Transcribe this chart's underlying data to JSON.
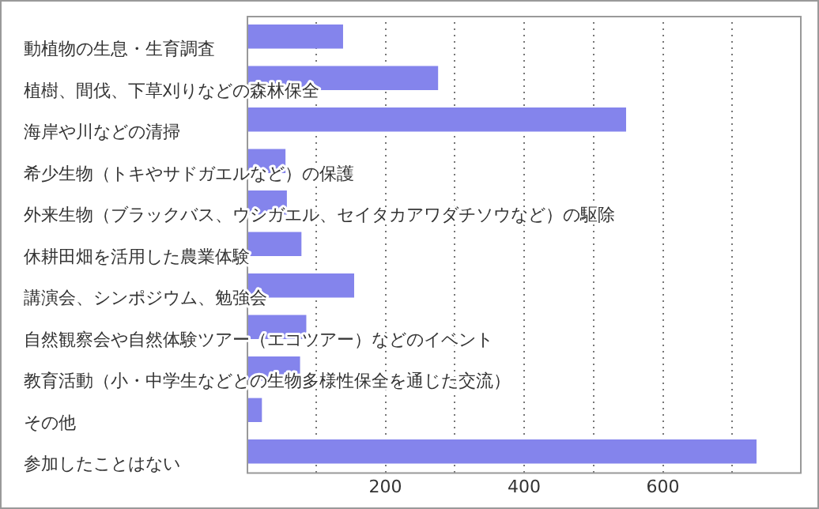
{
  "chart_data": {
    "type": "bar",
    "orientation": "horizontal",
    "categories": [
      "動植物の生息・生育調査",
      "植樹、間伐、下草刈りなどの森林保全",
      "海岸や川などの清掃",
      "希少生物（トキやサドガエルなど）の保護",
      "外来生物（ブラックバス、ウシガエル、セイタカアワダチソウなど）の駆除",
      "休耕田畑を活用した農業体験",
      "講演会、シンポジウム、勉強会",
      "自然観察会や自然体験ツアー（エコツアー）などのイベント",
      "教育活動（小・中学生などとの生物多様性保全を通じた交流）",
      "その他",
      "参加したことはない"
    ],
    "values": [
      139,
      276,
      547,
      56,
      58,
      79,
      155,
      86,
      77,
      22,
      735
    ],
    "color": "#8484ec",
    "xlim": [
      0,
      800
    ],
    "xticks": [
      {
        "value": 100,
        "label": null
      },
      200,
      {
        "value": 300,
        "label": null
      },
      400,
      {
        "value": 500,
        "label": null
      },
      600,
      {
        "value": 700,
        "label": null
      }
    ],
    "grid": "x",
    "legend": false
  }
}
